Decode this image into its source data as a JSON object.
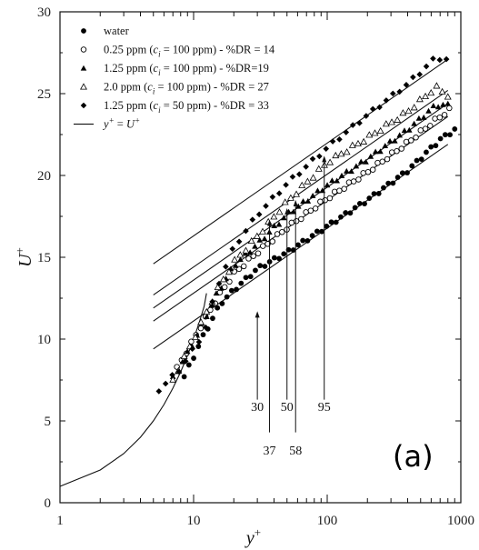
{
  "panel_label": "(a)",
  "chart_data": {
    "type": "scatter",
    "title": "",
    "x_scale": "log",
    "xlim": [
      1,
      1000
    ],
    "ylim": [
      0,
      30
    ],
    "x_ticks": [
      "1",
      "10",
      "100",
      "1000"
    ],
    "y_ticks": [
      "0",
      "5",
      "10",
      "15",
      "20",
      "25",
      "30"
    ],
    "xlabel": {
      "base": "y",
      "sup": "+"
    },
    "ylabel": {
      "base": "U",
      "sup": "+"
    },
    "grid": false,
    "legend_position": "top-left",
    "legend": [
      {
        "marker": "filled-circle",
        "parts": [
          [
            "water",
            ""
          ]
        ]
      },
      {
        "marker": "open-circle",
        "parts": [
          [
            "0.25 ppm (",
            ""
          ],
          [
            "c",
            "i"
          ],
          [
            " = 100 ppm) - %DR = 14",
            ""
          ]
        ]
      },
      {
        "marker": "filled-triangle",
        "parts": [
          [
            "1.25 ppm (",
            ""
          ],
          [
            "c",
            "i"
          ],
          [
            " = 100 ppm) - %DR=19",
            ""
          ]
        ]
      },
      {
        "marker": "open-triangle",
        "parts": [
          [
            "2.0 ppm (",
            ""
          ],
          [
            "c",
            "i"
          ],
          [
            " = 100 ppm) - %DR = 27",
            ""
          ]
        ]
      },
      {
        "marker": "filled-diamond",
        "parts": [
          [
            "1.25 ppm (",
            ""
          ],
          [
            "c",
            "i"
          ],
          [
            " = 50 ppm) - %DR = 33",
            ""
          ]
        ]
      },
      {
        "marker": "line",
        "parts": [
          [
            "y",
            "+"
          ],
          [
            " =  ",
            ""
          ],
          [
            "U",
            "+"
          ]
        ]
      }
    ],
    "series": [
      {
        "marker": "filled-circle",
        "x0": 8.5,
        "x1": 900,
        "n": 58,
        "y_at": [
          [
            8.5,
            7.7
          ],
          [
            12,
            10.3
          ],
          [
            16,
            12.2
          ],
          [
            20,
            13.0
          ],
          [
            30,
            14.3
          ],
          [
            50,
            15.3
          ],
          [
            100,
            16.9
          ],
          [
            200,
            18.5
          ],
          [
            400,
            20.3
          ],
          [
            700,
            22.2
          ],
          [
            900,
            22.8
          ]
        ]
      },
      {
        "marker": "open-circle",
        "x0": 7.5,
        "x1": 820,
        "n": 58,
        "y_at": [
          [
            7.5,
            8.2
          ],
          [
            10,
            10.0
          ],
          [
            15,
            12.5
          ],
          [
            20,
            14.0
          ],
          [
            30,
            15.3
          ],
          [
            50,
            16.8
          ],
          [
            100,
            18.6
          ],
          [
            200,
            20.2
          ],
          [
            400,
            22.0
          ],
          [
            650,
            23.4
          ],
          [
            820,
            24.0
          ]
        ]
      },
      {
        "marker": "filled-triangle",
        "x0": 7,
        "x1": 800,
        "n": 58,
        "y_at": [
          [
            7,
            7.6
          ],
          [
            10,
            9.8
          ],
          [
            15,
            12.8
          ],
          [
            20,
            14.5
          ],
          [
            30,
            15.8
          ],
          [
            50,
            17.6
          ],
          [
            100,
            19.4
          ],
          [
            200,
            21.0
          ],
          [
            400,
            22.8
          ],
          [
            650,
            24.3
          ],
          [
            800,
            24.3
          ]
        ]
      },
      {
        "marker": "open-triangle",
        "x0": 7,
        "x1": 800,
        "n": 50,
        "y_at": [
          [
            7,
            7.5
          ],
          [
            10,
            10.0
          ],
          [
            15,
            13.0
          ],
          [
            20,
            14.7
          ],
          [
            30,
            16.3
          ],
          [
            50,
            18.4
          ],
          [
            100,
            20.8
          ],
          [
            200,
            22.3
          ],
          [
            400,
            23.9
          ],
          [
            650,
            25.4
          ],
          [
            800,
            24.9
          ]
        ]
      },
      {
        "marker": "filled-diamond",
        "x0": 5.5,
        "x1": 780,
        "n": 44,
        "y_at": [
          [
            5.5,
            6.9
          ],
          [
            8,
            8.2
          ],
          [
            12,
            10.4
          ],
          [
            15,
            13.2
          ],
          [
            20,
            15.6
          ],
          [
            30,
            17.6
          ],
          [
            50,
            19.5
          ],
          [
            100,
            21.7
          ],
          [
            200,
            23.7
          ],
          [
            400,
            25.6
          ],
          [
            650,
            27.2
          ],
          [
            780,
            27.1
          ]
        ]
      }
    ],
    "laminar_curve": [
      [
        1,
        1
      ],
      [
        2,
        2
      ],
      [
        3,
        3
      ],
      [
        4,
        4
      ],
      [
        5,
        5
      ],
      [
        6,
        6
      ],
      [
        7,
        7
      ],
      [
        8,
        8
      ],
      [
        9,
        9
      ],
      [
        10,
        10
      ],
      [
        11,
        11
      ],
      [
        12,
        12
      ],
      [
        12.5,
        12.8
      ]
    ],
    "log_law_lines": [
      {
        "x": [
          5,
          800
        ],
        "y": [
          9.4,
          21.9
        ]
      },
      {
        "x": [
          5,
          800
        ],
        "y": [
          11.1,
          23.6
        ]
      },
      {
        "x": [
          5,
          800
        ],
        "y": [
          11.9,
          24.4
        ]
      },
      {
        "x": [
          5,
          800
        ],
        "y": [
          12.7,
          25.2
        ]
      },
      {
        "x": [
          5,
          800
        ],
        "y": [
          14.6,
          27.1
        ]
      }
    ],
    "annotations": [
      {
        "label": "30",
        "x": 30,
        "y_top": 11.7,
        "y_bottom": 6.3,
        "label_row": "upper"
      },
      {
        "label": "37",
        "x": 37,
        "y_top": 17.3,
        "y_bottom": 4.3,
        "label_row": "lower"
      },
      {
        "label": "50",
        "x": 50,
        "y_top": 18.0,
        "y_bottom": 6.3,
        "label_row": "upper"
      },
      {
        "label": "58",
        "x": 58,
        "y_top": 18.5,
        "y_bottom": 4.3,
        "label_row": "lower"
      },
      {
        "label": "95",
        "x": 95,
        "y_top": 21.2,
        "y_bottom": 6.3,
        "label_row": "upper"
      }
    ]
  }
}
